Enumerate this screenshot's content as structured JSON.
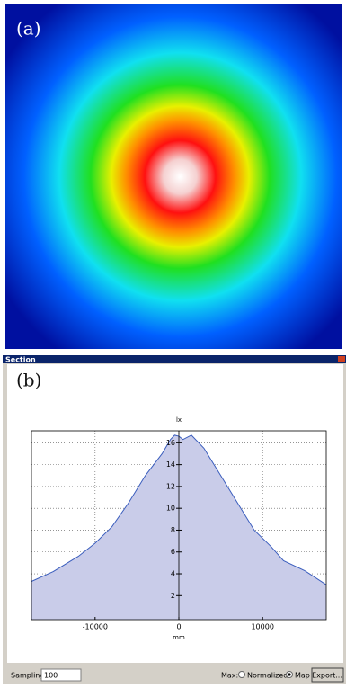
{
  "panel_a": {
    "label": "(a)"
  },
  "window": {
    "title": "Section",
    "label": "(b)"
  },
  "chart_data": {
    "type": "line",
    "y_label": "lx",
    "x_label": "mm",
    "x": [
      -17600,
      -15000,
      -12000,
      -10000,
      -8000,
      -6000,
      -4000,
      -2000,
      -1000,
      -500,
      0,
      500,
      1500,
      3000,
      5000,
      7000,
      9000,
      11000,
      12500,
      15000,
      17600
    ],
    "series": [
      {
        "color": "#3a5dbd",
        "fill": "#c9cce9",
        "values": [
          3.3,
          4.2,
          5.6,
          6.8,
          8.3,
          10.5,
          13,
          15,
          16.3,
          16.7,
          16.6,
          16.3,
          16.7,
          15.5,
          13,
          10.5,
          8,
          6.5,
          5.2,
          4.3,
          3.0
        ]
      }
    ],
    "xlim": [
      -17600,
      17600
    ],
    "ylim": [
      -0.2,
      17.1
    ],
    "xticks": [
      -10000,
      0,
      10000
    ],
    "yticks": [
      2,
      4,
      6,
      8,
      10,
      12,
      14,
      16
    ],
    "grid": true
  },
  "controls": {
    "sampling_label": "Sampling",
    "sampling_value": "100",
    "max_label": "Max:",
    "option_normalized": "Normalized",
    "option_map": "Map",
    "map_selected": true,
    "export_button": "Export..."
  }
}
